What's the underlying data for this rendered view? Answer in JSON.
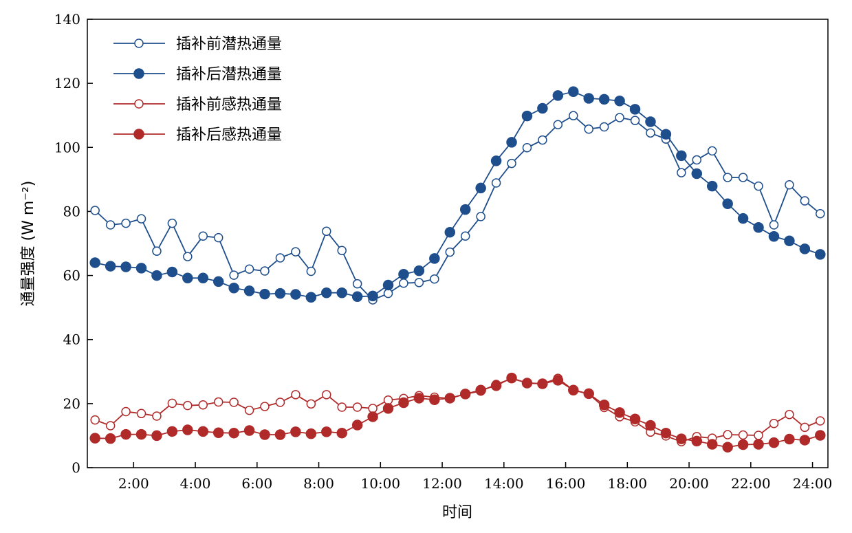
{
  "chart_data": {
    "type": "line",
    "xlabel": "时间",
    "ylabel": "通量强度 (W m⁻²)",
    "ylim": [
      0,
      140
    ],
    "yticks": [
      0,
      20,
      40,
      60,
      80,
      100,
      120,
      140
    ],
    "xlim": [
      0.5,
      24.5
    ],
    "xtick_values": [
      2,
      4,
      6,
      8,
      10,
      12,
      14,
      16,
      18,
      20,
      22,
      24
    ],
    "xtick_labels": [
      "2:00",
      "4:00",
      "6:00",
      "8:00",
      "10:00",
      "12:00",
      "14:00",
      "16:00",
      "18:00",
      "20:00",
      "22:00",
      "24:00"
    ],
    "legend_position": "top-left",
    "grid": false,
    "x": [
      0.75,
      1.25,
      1.75,
      2.25,
      2.75,
      3.25,
      3.75,
      4.25,
      4.75,
      5.25,
      5.75,
      6.25,
      6.75,
      7.25,
      7.75,
      8.25,
      8.75,
      9.25,
      9.75,
      10.25,
      10.75,
      11.25,
      11.75,
      12.25,
      12.75,
      13.25,
      13.75,
      14.25,
      14.75,
      15.25,
      15.75,
      16.25,
      16.75,
      17.25,
      17.75,
      18.25,
      18.75,
      19.25,
      19.75,
      20.25,
      20.75,
      21.25,
      21.75,
      22.25,
      22.75,
      23.25,
      23.75,
      24.25
    ],
    "series": [
      {
        "name": "插补前潜热通量",
        "color": "#1f4e8c",
        "marker": "open",
        "values": [
          80.3,
          75.8,
          76.3,
          77.7,
          67.6,
          76.3,
          65.9,
          72.3,
          71.8,
          60.1,
          62.0,
          61.4,
          65.5,
          67.4,
          61.3,
          73.8,
          67.8,
          57.4,
          52.4,
          54.4,
          57.6,
          57.8,
          58.9,
          67.3,
          72.3,
          78.4,
          88.9,
          95.0,
          99.9,
          102.3,
          107.1,
          109.9,
          105.7,
          106.4,
          109.3,
          108.4,
          104.5,
          102.6,
          92.1,
          96.1,
          98.9,
          90.6,
          90.6,
          87.9,
          75.8,
          88.3,
          83.3,
          79.3
        ]
      },
      {
        "name": "插补后潜热通量",
        "color": "#1f4e8c",
        "marker": "filled",
        "values": [
          64.0,
          62.9,
          62.7,
          62.3,
          60.0,
          61.1,
          59.2,
          59.2,
          58.1,
          56.1,
          55.2,
          54.2,
          54.4,
          54.1,
          53.2,
          54.6,
          54.6,
          53.4,
          53.6,
          57.0,
          60.4,
          61.5,
          65.3,
          73.5,
          80.6,
          87.3,
          95.8,
          101.6,
          109.8,
          112.2,
          116.2,
          117.4,
          115.3,
          115.0,
          114.5,
          111.9,
          108.0,
          104.1,
          97.4,
          91.8,
          87.9,
          82.4,
          77.8,
          75.0,
          72.2,
          70.8,
          68.3,
          66.6
        ]
      },
      {
        "name": "插补前感热通量",
        "color": "#b02a2a",
        "marker": "open",
        "values": [
          14.9,
          13.1,
          17.5,
          16.9,
          16.1,
          20.1,
          19.4,
          19.6,
          20.5,
          20.4,
          17.9,
          19.1,
          20.4,
          22.8,
          19.9,
          22.8,
          18.9,
          18.9,
          18.5,
          21.1,
          21.6,
          22.5,
          22.0,
          21.6,
          23.0,
          23.9,
          26.0,
          27.8,
          26.5,
          26.2,
          27.9,
          24.2,
          23.0,
          18.8,
          15.9,
          14.3,
          11.1,
          9.9,
          8.1,
          9.7,
          9.2,
          10.3,
          10.2,
          10.1,
          13.8,
          16.6,
          12.6,
          14.6
        ]
      },
      {
        "name": "插补后感热通量",
        "color": "#b02a2a",
        "marker": "filled",
        "values": [
          9.2,
          9.1,
          10.4,
          10.4,
          10.0,
          11.3,
          11.8,
          11.3,
          10.9,
          10.8,
          11.6,
          10.3,
          10.3,
          11.2,
          10.6,
          11.2,
          10.8,
          13.3,
          15.9,
          18.5,
          20.3,
          21.7,
          21.2,
          21.7,
          23.0,
          24.2,
          25.6,
          28.0,
          26.4,
          26.2,
          27.3,
          24.2,
          23.1,
          19.6,
          17.2,
          15.2,
          13.2,
          10.8,
          9.0,
          8.3,
          7.3,
          6.4,
          7.2,
          7.3,
          7.8,
          8.9,
          8.6,
          10.1
        ]
      }
    ]
  }
}
